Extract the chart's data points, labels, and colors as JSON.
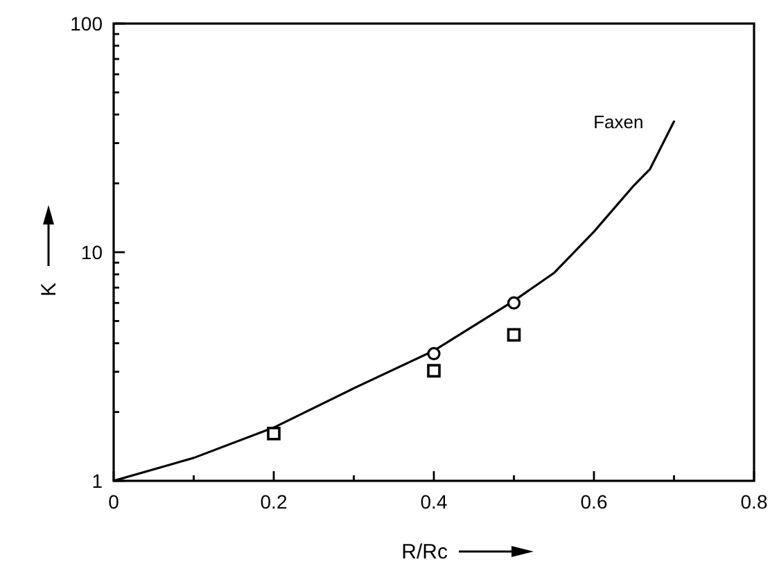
{
  "chart_data": {
    "type": "scatter",
    "xlabel": "R/Rc",
    "ylabel": "K",
    "log": "y",
    "grid": false,
    "xlim": [
      0,
      0.8
    ],
    "ylim": [
      1,
      100
    ],
    "xticks": [
      0,
      {
        "value": 0.1,
        "label": null
      },
      0.2,
      {
        "value": 0.3,
        "label": null
      },
      0.4,
      {
        "value": 0.5,
        "label": null
      },
      0.6,
      {
        "value": 0.7,
        "label": null
      },
      0.8
    ],
    "yticks": [
      1,
      {
        "value": 2,
        "label": null
      },
      {
        "value": 3,
        "label": null
      },
      {
        "value": 4,
        "label": null
      },
      {
        "value": 5,
        "label": null
      },
      {
        "value": 6,
        "label": null
      },
      {
        "value": 7,
        "label": null
      },
      {
        "value": 8,
        "label": null
      },
      {
        "value": 9,
        "label": null
      },
      10,
      {
        "value": 20,
        "label": null
      },
      {
        "value": 30,
        "label": null
      },
      {
        "value": 40,
        "label": null
      },
      {
        "value": 50,
        "label": null
      },
      {
        "value": 60,
        "label": null
      },
      {
        "value": 70,
        "label": null
      },
      {
        "value": 80,
        "label": null
      },
      {
        "value": 90,
        "label": null
      },
      100
    ],
    "series": [
      {
        "name": "Faxen",
        "type": "line",
        "color": "#000000",
        "line_style": "solid",
        "x": [
          0,
          0.1,
          0.2,
          0.3,
          0.4,
          0.5,
          0.55,
          0.6,
          0.65,
          0.67,
          0.7
        ],
        "values": [
          1,
          1.26,
          1.71,
          2.54,
          3.71,
          6.13,
          8.11,
          12.3,
          19.6,
          23.1,
          37.3
        ]
      },
      {
        "color": "#000000",
        "marker": "circle",
        "x": [
          0.4,
          0.5
        ],
        "values": [
          3.6,
          6.0
        ]
      },
      {
        "color": "#000000",
        "marker": "square",
        "x": [
          0.2,
          0.4,
          0.5
        ],
        "values": [
          1.61,
          3.03,
          4.35
        ]
      }
    ]
  }
}
